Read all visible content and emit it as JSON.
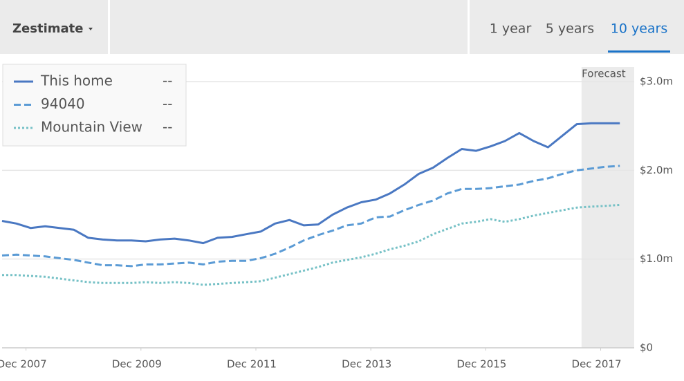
{
  "ui": {
    "dropdown": "Zestimate",
    "tabs": [
      "1 year",
      "5 years",
      "10 years"
    ],
    "active_tab": 2
  },
  "chart_data": {
    "type": "line",
    "x": [
      "2007-07",
      "2007-10",
      "2008-01",
      "2008-04",
      "2008-07",
      "2008-10",
      "2009-01",
      "2009-04",
      "2009-07",
      "2009-10",
      "2010-01",
      "2010-04",
      "2010-07",
      "2010-10",
      "2011-01",
      "2011-04",
      "2011-07",
      "2011-10",
      "2012-01",
      "2012-04",
      "2012-07",
      "2012-10",
      "2013-01",
      "2013-04",
      "2013-07",
      "2013-10",
      "2014-01",
      "2014-04",
      "2014-07",
      "2014-10",
      "2015-01",
      "2015-04",
      "2015-07",
      "2015-10",
      "2016-01",
      "2016-04",
      "2016-07",
      "2016-10",
      "2017-01",
      "2017-04",
      "2017-07",
      "2017-10",
      "2018-01",
      "2018-04"
    ],
    "series": [
      {
        "name": "This home",
        "color": "#4a78c2",
        "dash": "solid",
        "legend_value": "--",
        "values": [
          1.43,
          1.4,
          1.35,
          1.37,
          1.35,
          1.33,
          1.24,
          1.22,
          1.21,
          1.21,
          1.2,
          1.22,
          1.23,
          1.21,
          1.18,
          1.24,
          1.25,
          1.28,
          1.31,
          1.4,
          1.44,
          1.38,
          1.39,
          1.5,
          1.58,
          1.64,
          1.67,
          1.74,
          1.84,
          1.96,
          2.03,
          2.14,
          2.24,
          2.22,
          2.27,
          2.33,
          2.42,
          2.33,
          2.26,
          2.39,
          2.52,
          2.53,
          2.53,
          2.53
        ]
      },
      {
        "name": "94040",
        "color": "#5b9bd5",
        "dash": "dashed",
        "legend_value": "--",
        "values": [
          1.04,
          1.05,
          1.04,
          1.03,
          1.01,
          0.99,
          0.96,
          0.93,
          0.93,
          0.92,
          0.94,
          0.94,
          0.95,
          0.96,
          0.94,
          0.97,
          0.98,
          0.98,
          1.01,
          1.06,
          1.13,
          1.21,
          1.27,
          1.32,
          1.38,
          1.4,
          1.47,
          1.48,
          1.55,
          1.61,
          1.66,
          1.74,
          1.79,
          1.79,
          1.8,
          1.82,
          1.84,
          1.88,
          1.91,
          1.96,
          2.0,
          2.02,
          2.04,
          2.05
        ]
      },
      {
        "name": "Mountain View",
        "color": "#76c1c6",
        "dash": "dotted",
        "legend_value": "--",
        "values": [
          0.82,
          0.82,
          0.81,
          0.8,
          0.78,
          0.76,
          0.74,
          0.73,
          0.73,
          0.73,
          0.74,
          0.73,
          0.74,
          0.73,
          0.71,
          0.72,
          0.73,
          0.74,
          0.75,
          0.79,
          0.83,
          0.87,
          0.91,
          0.96,
          0.99,
          1.02,
          1.06,
          1.11,
          1.15,
          1.2,
          1.28,
          1.34,
          1.4,
          1.42,
          1.45,
          1.42,
          1.45,
          1.49,
          1.52,
          1.55,
          1.58,
          1.59,
          1.6,
          1.61
        ]
      }
    ],
    "xlim": [
      "2007-07",
      "2018-07"
    ],
    "xticks": [
      {
        "value": "2007-12",
        "label": "Dec 2007"
      },
      {
        "value": "2009-12",
        "label": "Dec 2009"
      },
      {
        "value": "2011-12",
        "label": "Dec 2011"
      },
      {
        "value": "2013-12",
        "label": "Dec 2013"
      },
      {
        "value": "2015-12",
        "label": "Dec 2015"
      },
      {
        "value": "2017-12",
        "label": "Dec 2017"
      }
    ],
    "ylim": [
      0,
      3
    ],
    "yticks": [
      {
        "value": 0,
        "label": "$0"
      },
      {
        "value": 1,
        "label": "$1.0m"
      },
      {
        "value": 2,
        "label": "$2.0m"
      },
      {
        "value": 3,
        "label": "$3.0m"
      }
    ],
    "grid": true,
    "legend": "top-left",
    "forecast": {
      "label": "Forecast",
      "start": "2017-08",
      "end": "2018-07"
    }
  }
}
